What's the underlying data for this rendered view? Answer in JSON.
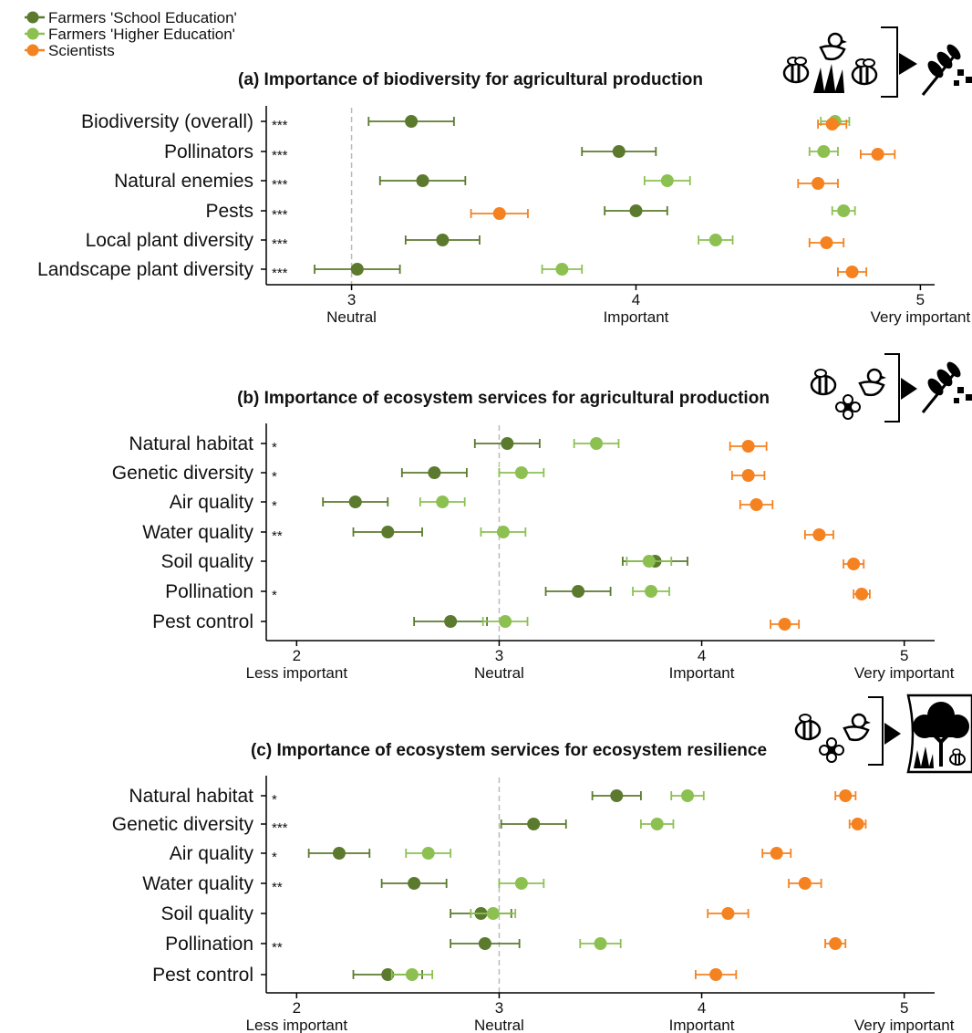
{
  "legend": {
    "items": [
      {
        "label": "Farmers 'School Education'",
        "color": "#5b7a2e"
      },
      {
        "label": "Farmers 'Higher Education'",
        "color": "#8cc152"
      },
      {
        "label": "Scientists",
        "color": "#f58220"
      }
    ]
  },
  "colors": {
    "school": "#5b7a2e",
    "higher": "#8cc152",
    "scientists": "#f58220",
    "neutral_line": "#bbbbbb"
  },
  "icons": {
    "a": [
      "bee-icon",
      "bird-icon",
      "grass-icon",
      "bee-icon",
      "arrow-icon",
      "wheat-icon"
    ],
    "b": [
      "bee-icon",
      "bird-icon",
      "flower-icon",
      "arrow-icon",
      "wheat-icon"
    ],
    "c": [
      "bee-icon",
      "bird-icon",
      "flower-icon",
      "arrow-icon",
      "tree-icon",
      "grass-icon",
      "bee-icon"
    ]
  },
  "chart_data": [
    {
      "type": "scatter",
      "title": "(a) Importance of biodiversity for agricultural production",
      "categories": [
        "Biodiversity (overall)",
        "Pollinators",
        "Natural enemies",
        "Pests",
        "Local plant diversity",
        "Landscape plant diversity"
      ],
      "significance": [
        "***",
        "***",
        "***",
        "***",
        "***",
        "***"
      ],
      "xlim": [
        2.7,
        5.05
      ],
      "ticks": [
        {
          "value": 3,
          "num": "3",
          "label": "Neutral"
        },
        {
          "value": 4,
          "num": "4",
          "label": "Important"
        },
        {
          "value": 5,
          "num": "5",
          "label": "Very important"
        }
      ],
      "series": [
        {
          "name": "Farmers 'School Education'",
          "values": [
            3.21,
            3.94,
            3.25,
            4.0,
            3.32,
            3.02
          ],
          "errors": [
            0.15,
            0.13,
            0.15,
            0.11,
            0.13,
            0.15
          ]
        },
        {
          "name": "Farmers 'Higher Education'",
          "values": [
            4.7,
            4.66,
            4.11,
            4.73,
            4.28,
            3.74
          ],
          "errors": [
            0.05,
            0.05,
            0.08,
            0.04,
            0.06,
            0.07
          ]
        },
        {
          "name": "Scientists",
          "values": [
            4.69,
            4.85,
            4.64,
            3.52,
            4.67,
            4.76
          ],
          "errors": [
            0.05,
            0.06,
            0.07,
            0.1,
            0.06,
            0.05
          ]
        }
      ]
    },
    {
      "type": "scatter",
      "title": "(b) Importance of ecosystem services for agricultural production",
      "categories": [
        "Natural habitat",
        "Genetic diversity",
        "Air quality",
        "Water quality",
        "Soil quality",
        "Pollination",
        "Pest control"
      ],
      "significance": [
        "*",
        "*",
        "*",
        "**",
        "",
        "*",
        ""
      ],
      "xlim": [
        1.85,
        5.15
      ],
      "ticks": [
        {
          "value": 2,
          "num": "2",
          "label": "Less important"
        },
        {
          "value": 3,
          "num": "3",
          "label": "Neutral"
        },
        {
          "value": 4,
          "num": "4",
          "label": "Important"
        },
        {
          "value": 5,
          "num": "5",
          "label": "Very important"
        }
      ],
      "series": [
        {
          "name": "Farmers 'School Education'",
          "values": [
            3.04,
            2.68,
            2.29,
            2.45,
            3.77,
            3.39,
            2.76
          ],
          "errors": [
            0.16,
            0.16,
            0.16,
            0.17,
            0.16,
            0.16,
            0.18
          ]
        },
        {
          "name": "Farmers 'Higher Education'",
          "values": [
            3.48,
            3.11,
            2.72,
            3.02,
            3.74,
            3.75,
            3.03
          ],
          "errors": [
            0.11,
            0.11,
            0.11,
            0.11,
            0.11,
            0.09,
            0.11
          ]
        },
        {
          "name": "Scientists",
          "values": [
            4.23,
            4.23,
            4.27,
            4.58,
            4.75,
            4.79,
            4.41
          ],
          "errors": [
            0.09,
            0.08,
            0.08,
            0.07,
            0.05,
            0.04,
            0.07
          ]
        }
      ]
    },
    {
      "type": "scatter",
      "title": "(c) Importance of ecosystem services for ecosystem resilience",
      "categories": [
        "Natural habitat",
        "Genetic diversity",
        "Air quality",
        "Water quality",
        "Soil quality",
        "Pollination",
        "Pest control"
      ],
      "significance": [
        "*",
        "***",
        "*",
        "**",
        "",
        "**",
        ""
      ],
      "xlim": [
        1.85,
        5.15
      ],
      "ticks": [
        {
          "value": 2,
          "num": "2",
          "label": "Less important"
        },
        {
          "value": 3,
          "num": "3",
          "label": "Neutral"
        },
        {
          "value": 4,
          "num": "4",
          "label": "Important"
        },
        {
          "value": 5,
          "num": "5",
          "label": "Very important"
        }
      ],
      "series": [
        {
          "name": "Farmers 'School Education'",
          "values": [
            3.58,
            3.17,
            2.21,
            2.58,
            2.91,
            2.93,
            2.45
          ],
          "errors": [
            0.12,
            0.16,
            0.15,
            0.16,
            0.15,
            0.17,
            0.17
          ]
        },
        {
          "name": "Farmers 'Higher Education'",
          "values": [
            3.93,
            3.78,
            2.65,
            3.11,
            2.97,
            3.5,
            2.57
          ],
          "errors": [
            0.08,
            0.08,
            0.11,
            0.11,
            0.11,
            0.1,
            0.1
          ]
        },
        {
          "name": "Scientists",
          "values": [
            4.71,
            4.77,
            4.37,
            4.51,
            4.13,
            4.66,
            4.07
          ],
          "errors": [
            0.05,
            0.04,
            0.07,
            0.08,
            0.1,
            0.05,
            0.1
          ]
        }
      ]
    }
  ]
}
